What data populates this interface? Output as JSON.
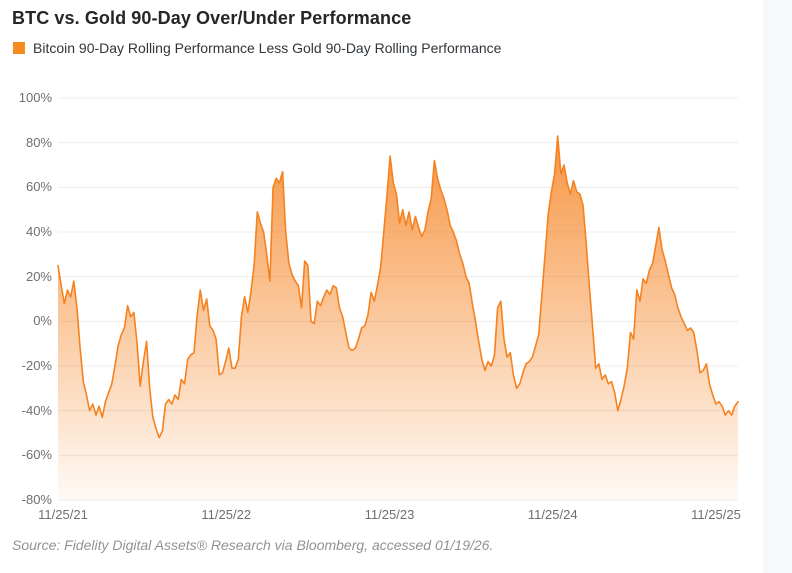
{
  "header": {
    "title": "BTC vs. Gold 90-Day Over/Under Performance"
  },
  "legend": {
    "swatch_color": "#f68b1f",
    "label": "Bitcoin 90-Day Rolling Performance Less Gold 90-Day Rolling Performance"
  },
  "source": {
    "text": "Source: Fidelity Digital Assets® Research via Bloomberg, accessed 01/19/26."
  },
  "colors": {
    "line": "#f58220",
    "fill_top": "rgba(245,130,32,0.92)",
    "fill_bottom": "rgba(245,130,32,0.04)",
    "grid": "#ececec",
    "tick_text": "#6f6f6f",
    "title_text": "#262626",
    "page_strip": "#f7f8f9"
  },
  "chart_data": {
    "type": "area",
    "title": "BTC vs. Gold 90-Day Over/Under Performance",
    "series_name": "Bitcoin 90-Day Rolling Performance Less Gold 90-Day Rolling Performance",
    "xlabel": "",
    "ylabel": "",
    "ylim": [
      -80,
      100
    ],
    "grid": "horizontal",
    "legend_position": "top-left",
    "y_tick_labels": [
      "100%",
      "80%",
      "60%",
      "40%",
      "20%",
      "0%",
      "-20%",
      "-40%",
      "-60%",
      "-80%"
    ],
    "y_tick_values": [
      100,
      80,
      60,
      40,
      20,
      0,
      -20,
      -40,
      -60,
      -80
    ],
    "x_tick_labels": [
      "11/25/21",
      "11/25/22",
      "11/25/23",
      "11/25/24",
      "11/25/25"
    ],
    "x_start": "11/25/21",
    "x_end": "~01/16/26",
    "unit": "%",
    "values": [
      25,
      16,
      8,
      14,
      11,
      18,
      6,
      -12,
      -27,
      -33,
      -40,
      -37,
      -42,
      -38,
      -43,
      -36,
      -32,
      -28,
      -20,
      -11,
      -6,
      -3,
      7,
      2,
      4,
      -10,
      -29,
      -18,
      -9,
      -30,
      -43,
      -48,
      -52,
      -49,
      -37,
      -35,
      -37,
      -33,
      -35,
      -26,
      -28,
      -17,
      -15,
      -14,
      3,
      14,
      5,
      10,
      -2,
      -4,
      -8,
      -24,
      -23,
      -18,
      -12,
      -21,
      -21,
      -17,
      2,
      11,
      4,
      13,
      25,
      49,
      44,
      40,
      30,
      18,
      60,
      64,
      62,
      67,
      40,
      26,
      21,
      18,
      16,
      6,
      27,
      25,
      0,
      -1,
      9,
      7,
      11,
      14,
      12,
      16,
      15,
      6,
      2,
      -5,
      -12,
      -13,
      -12,
      -8,
      -3,
      -2,
      3,
      13,
      9,
      16,
      24,
      40,
      56,
      74,
      62,
      57,
      44,
      50,
      43,
      49,
      41,
      47,
      42,
      38,
      41,
      49,
      55,
      72,
      64,
      59,
      55,
      50,
      43,
      40,
      36,
      30,
      26,
      20,
      17,
      8,
      0,
      -9,
      -17,
      -22,
      -18,
      -20,
      -15,
      6,
      9,
      -8,
      -16,
      -14,
      -24,
      -30,
      -28,
      -23,
      -19,
      -18,
      -16,
      -11,
      -6,
      12,
      30,
      48,
      58,
      66,
      83,
      66,
      70,
      62,
      57,
      63,
      58,
      57,
      52,
      35,
      16,
      -2,
      -21,
      -19,
      -26,
      -24,
      -28,
      -27,
      -32,
      -40,
      -35,
      -29,
      -21,
      -5,
      -8,
      14,
      9,
      19,
      17,
      23,
      26,
      34,
      42,
      32,
      27,
      21,
      15,
      12,
      6,
      2,
      -1,
      -4,
      -3,
      -5,
      -13,
      -23,
      -22,
      -19,
      -28,
      -33,
      -37,
      -36,
      -38,
      -42,
      -40,
      -42,
      -38,
      -36
    ]
  }
}
